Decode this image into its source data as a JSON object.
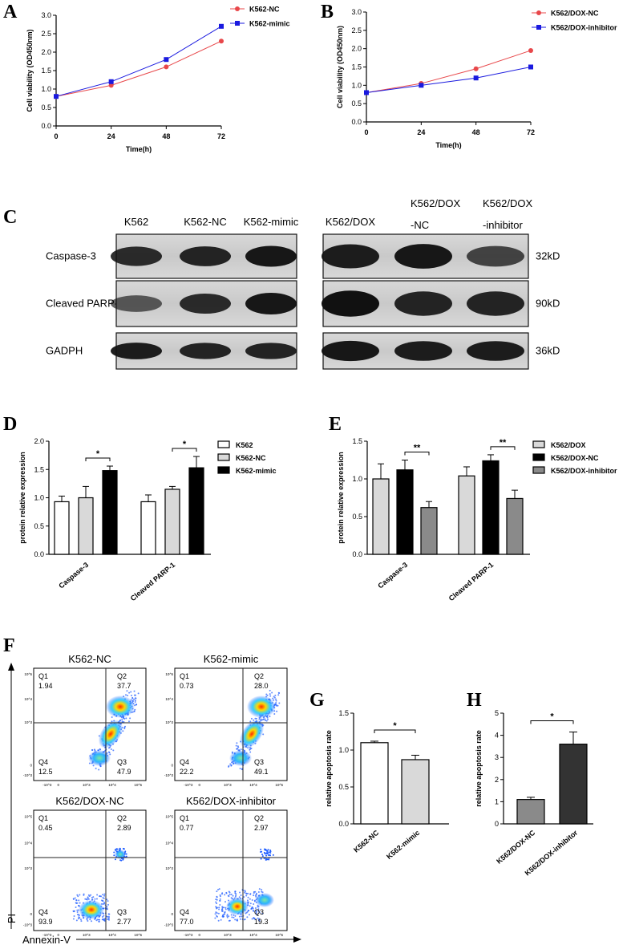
{
  "panels": {
    "A": {
      "letter": "A"
    },
    "B": {
      "letter": "B"
    },
    "C": {
      "letter": "C"
    },
    "D": {
      "letter": "D"
    },
    "E": {
      "letter": "E"
    },
    "F": {
      "letter": "F"
    },
    "G": {
      "letter": "G"
    },
    "H": {
      "letter": "H"
    }
  },
  "western_blot": {
    "left_lanes": [
      "K562",
      "K562-NC",
      "K562-mimic"
    ],
    "right_lanes": [
      {
        "line1": "K562/DOX",
        "line2": ""
      },
      {
        "line1": "K562/DOX",
        "line2": "-NC"
      },
      {
        "line1": "K562/DOX",
        "line2": "-inhibitor"
      }
    ],
    "rows": [
      {
        "name": "Caspase-3",
        "size": "32kD"
      },
      {
        "name": "Cleaved PARP-1",
        "size": "90kD"
      },
      {
        "name": "GADPH",
        "size": "36kD"
      }
    ]
  },
  "flow": {
    "y_axis_label": "PI",
    "x_axis_label": "Annexin-V",
    "plots": [
      {
        "title": "K562-NC",
        "q1": "1.94",
        "q2": "37.7",
        "q3": "47.9",
        "q4": "12.5"
      },
      {
        "title": "K562-mimic",
        "q1": "0.73",
        "q2": "28.0",
        "q3": "49.1",
        "q4": "22.2"
      },
      {
        "title": "K562/DOX-NC",
        "q1": "0.45",
        "q2": "2.89",
        "q3": "2.77",
        "q4": "93.9"
      },
      {
        "title": "K562/DOX-inhibitor",
        "q1": "0.77",
        "q2": "2.97",
        "q3": "19.3",
        "q4": "77.0"
      }
    ],
    "quadrant_names": [
      "Q1",
      "Q2",
      "Q3",
      "Q4"
    ],
    "tick_labels_y": [
      "10^5",
      "10^4",
      "10^3",
      "0",
      "-10^3"
    ],
    "tick_labels_x": [
      "-10^3",
      "0",
      "10^3",
      "10^4",
      "10^5"
    ]
  },
  "colors": {
    "red": "#e8474a",
    "blue": "#1a1adf",
    "black": "#000000",
    "light_gray": "#d9d9d9",
    "mid_gray": "#8a8a8a",
    "dark_gray": "#333333"
  },
  "chart_data": [
    {
      "id": "A",
      "type": "line",
      "x": [
        0,
        24,
        48,
        72
      ],
      "xlabel": "Time(h)",
      "ylabel": "Cell viability (OD450nm)",
      "ylim": [
        0,
        3.0
      ],
      "yticks": [
        "0.0",
        "0.5",
        "1.0",
        "1.5",
        "2.0",
        "2.5",
        "3.0"
      ],
      "xticks": [
        "0",
        "24",
        "48",
        "72"
      ],
      "legend": "top-right",
      "series": [
        {
          "name": "K562-NC",
          "values": [
            0.8,
            1.1,
            1.6,
            2.3
          ],
          "color": "#e8474a",
          "marker": "circle"
        },
        {
          "name": "K562-mimic",
          "values": [
            0.8,
            1.2,
            1.8,
            2.7
          ],
          "color": "#1a1adf",
          "marker": "square"
        }
      ]
    },
    {
      "id": "B",
      "type": "line",
      "x": [
        0,
        24,
        48,
        72
      ],
      "xlabel": "Time(h)",
      "ylabel": "Cell viability (OD450nm)",
      "ylim": [
        0,
        3.0
      ],
      "yticks": [
        "0.0",
        "0.5",
        "1.0",
        "1.5",
        "2.0",
        "2.5",
        "3.0"
      ],
      "xticks": [
        "0",
        "24",
        "48",
        "72"
      ],
      "legend": "top-right",
      "series": [
        {
          "name": "K562/DOX-NC",
          "values": [
            0.8,
            1.05,
            1.45,
            1.95
          ],
          "color": "#e8474a",
          "marker": "circle"
        },
        {
          "name": "K562/DOX-inhibitor",
          "values": [
            0.8,
            1.0,
            1.2,
            1.5
          ],
          "color": "#1a1adf",
          "marker": "square"
        }
      ]
    },
    {
      "id": "D",
      "type": "bar",
      "categories": [
        "Caspase-3",
        "Cleaved PARP-1"
      ],
      "ylabel": "protein relative expression",
      "ylim": [
        0,
        2.0
      ],
      "yticks": [
        "0.0",
        "0.5",
        "1.0",
        "1.5",
        "2.0"
      ],
      "legend": "top-right",
      "series": [
        {
          "name": "K562",
          "values": [
            0.93,
            0.93
          ],
          "errors": [
            0.1,
            0.12
          ],
          "color": "#ffffff"
        },
        {
          "name": "K562-NC",
          "values": [
            1.0,
            1.15
          ],
          "errors": [
            0.2,
            0.05
          ],
          "color": "#d9d9d9"
        },
        {
          "name": "K562-mimic",
          "values": [
            1.48,
            1.53
          ],
          "errors": [
            0.08,
            0.2
          ],
          "color": "#000000"
        }
      ],
      "annotations": [
        {
          "group": 0,
          "from": 1,
          "to": 2,
          "label": "*"
        },
        {
          "group": 1,
          "from": 1,
          "to": 2,
          "label": "*"
        }
      ]
    },
    {
      "id": "E",
      "type": "bar",
      "categories": [
        "Caspase-3",
        "Cleaved PARP-1"
      ],
      "ylabel": "protein relative expression",
      "ylim": [
        0,
        1.5
      ],
      "yticks": [
        "0.0",
        "0.5",
        "1.0",
        "1.5"
      ],
      "legend": "top-right",
      "series": [
        {
          "name": "K562/DOX",
          "values": [
            1.0,
            1.04
          ],
          "errors": [
            0.2,
            0.12
          ],
          "color": "#d9d9d9"
        },
        {
          "name": "K562/DOX-NC",
          "values": [
            1.12,
            1.24
          ],
          "errors": [
            0.13,
            0.08
          ],
          "color": "#000000"
        },
        {
          "name": "K562/DOX-inhibitor",
          "values": [
            0.62,
            0.74
          ],
          "errors": [
            0.08,
            0.11
          ],
          "color": "#8a8a8a"
        }
      ],
      "annotations": [
        {
          "group": 0,
          "from": 1,
          "to": 2,
          "label": "**"
        },
        {
          "group": 1,
          "from": 1,
          "to": 2,
          "label": "**"
        }
      ]
    },
    {
      "id": "G",
      "type": "bar",
      "categories": [
        "K562-NC",
        "K562-mimic"
      ],
      "ylabel": "relative apoptosis rate",
      "ylim": [
        0,
        1.5
      ],
      "yticks": [
        "0.0",
        "0.5",
        "1.0",
        "1.5"
      ],
      "values": [
        1.1,
        0.87
      ],
      "errors": [
        0.02,
        0.06
      ],
      "colors": [
        "#ffffff",
        "#d9d9d9"
      ],
      "annotations": [
        {
          "from": 0,
          "to": 1,
          "label": "*"
        }
      ]
    },
    {
      "id": "H",
      "type": "bar",
      "categories": [
        "K562/DOX-NC",
        "K562/DOX-inhibitor"
      ],
      "ylabel": "relative apoptosis rate",
      "ylim": [
        0,
        5
      ],
      "yticks": [
        "0",
        "1",
        "2",
        "3",
        "4",
        "5"
      ],
      "values": [
        1.1,
        3.6
      ],
      "errors": [
        0.1,
        0.55
      ],
      "colors": [
        "#8a8a8a",
        "#333333"
      ],
      "annotations": [
        {
          "from": 0,
          "to": 1,
          "label": "*"
        }
      ]
    }
  ]
}
